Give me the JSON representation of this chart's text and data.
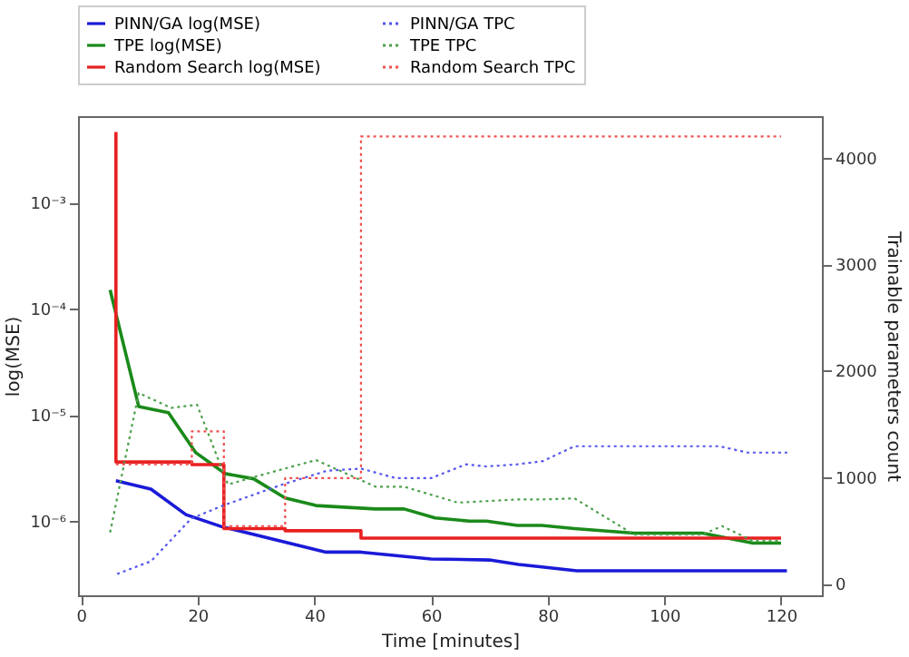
{
  "chart_data": {
    "type": "line",
    "xlabel": "Time [minutes]",
    "ylabel": "log(MSE)",
    "y2label": "Trainable parameters count",
    "log": "y",
    "grid": false,
    "legend": "top",
    "marker": "none",
    "xlim": [
      -0.5,
      127
    ],
    "xticks": [
      0,
      20,
      40,
      60,
      80,
      100,
      120
    ],
    "ylim": [
      2e-07,
      0.0065
    ],
    "yticks": [
      {
        "value": 1e-06,
        "label": "10⁻⁶"
      },
      {
        "value": 1e-05,
        "label": "10⁻⁵"
      },
      {
        "value": 0.0001,
        "label": "10⁻⁴"
      },
      {
        "value": 0.001,
        "label": "10⁻³"
      }
    ],
    "y2lim": [
      -110,
      4390
    ],
    "y2ticks": [
      0,
      1000,
      2000,
      3000,
      4000
    ],
    "series": [
      {
        "name": "PINN/GA log(MSE)",
        "color": "#1a1ad8",
        "line_style": "solid",
        "x": [
          6,
          12,
          18,
          24,
          42,
          48,
          60,
          70,
          75,
          79,
          85,
          121
        ],
        "values": [
          2.4e-06,
          2e-06,
          1.15e-06,
          8.9e-07,
          5.1e-07,
          5.1e-07,
          4.4e-07,
          4.3e-07,
          3.9e-07,
          3.7e-07,
          3.4e-07,
          3.4e-07
        ]
      },
      {
        "name": "TPE log(MSE)",
        "color": "#1a8a1a",
        "line_style": "solid",
        "x": [
          5,
          9.9,
          15,
          19.7,
          24.7,
          29.6,
          35,
          40.3,
          50.5,
          55.4,
          60.7,
          66.6,
          69.5,
          74.8,
          79,
          84.6,
          94.8,
          106.5,
          115.2,
          120
        ],
        "values": [
          0.00015,
          1.2e-05,
          1.05e-05,
          4.4e-06,
          2.8e-06,
          2.5e-06,
          1.65e-06,
          1.4e-06,
          1.3e-06,
          1.3e-06,
          1.07e-06,
          1e-06,
          1e-06,
          9.1e-07,
          9.1e-07,
          8.5e-07,
          7.7e-07,
          7.7e-07,
          6.2e-07,
          6.2e-07
        ]
      },
      {
        "name": "Random Search log(MSE)",
        "color": "#e82020",
        "type": "step",
        "line_style": "solid",
        "x": [
          6,
          6,
          19,
          24.5,
          35,
          48,
          120
        ],
        "values": [
          0.0046,
          3.6e-06,
          3.4e-06,
          8.5e-07,
          8.1e-07,
          6.9e-07,
          6.9e-07
        ]
      },
      {
        "name": "PINN/GA TPC",
        "color": "#5555ee",
        "line_style": "dotted",
        "axis": "y2",
        "x": [
          6.2,
          12,
          18.9,
          24.2,
          34.5,
          42.2,
          48,
          54,
          60,
          66,
          69.5,
          74.8,
          79.2,
          84.6,
          109.4,
          114.3,
          121.5
        ],
        "values": [
          90,
          210,
          610,
          730,
          930,
          1060,
          1080,
          990,
          990,
          1120,
          1100,
          1120,
          1150,
          1290,
          1290,
          1230,
          1230
        ]
      },
      {
        "name": "TPE TPC",
        "color": "#4ca04c",
        "line_style": "dotted",
        "axis": "y2",
        "x": [
          5,
          9.9,
          15.5,
          19.9,
          25.2,
          29.6,
          40.3,
          50.5,
          55.4,
          64.6,
          74.8,
          79,
          84.6,
          94.8,
          106.5,
          109.9,
          115.2,
          120
        ],
        "values": [
          480,
          1790,
          1650,
          1680,
          930,
          1000,
          1160,
          910,
          910,
          760,
          790,
          790,
          800,
          460,
          460,
          540,
          400,
          400
        ]
      },
      {
        "name": "Random Search TPC",
        "color": "#f05050",
        "type": "step",
        "line_style": "dotted",
        "axis": "y2",
        "x": [
          6,
          19,
          24.5,
          35,
          48,
          120
        ],
        "values": [
          1120,
          1430,
          540,
          990,
          4200,
          4200
        ]
      }
    ]
  }
}
